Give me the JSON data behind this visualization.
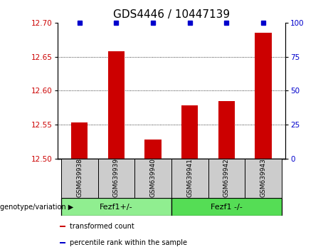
{
  "title": "GDS4446 / 10447139",
  "samples": [
    "GSM639938",
    "GSM639939",
    "GSM639940",
    "GSM639941",
    "GSM639942",
    "GSM639943"
  ],
  "bar_values": [
    12.553,
    12.658,
    12.528,
    12.578,
    12.585,
    12.685
  ],
  "percentile_values": [
    100,
    100,
    100,
    100,
    100,
    100
  ],
  "ylim_left": [
    12.5,
    12.7
  ],
  "ylim_right": [
    0,
    100
  ],
  "yticks_left": [
    12.5,
    12.55,
    12.6,
    12.65,
    12.7
  ],
  "yticks_right": [
    0,
    25,
    50,
    75,
    100
  ],
  "bar_color": "#cc0000",
  "percentile_color": "#0000cc",
  "groups": [
    {
      "label": "Fezf1+/-",
      "sample_indices": [
        0,
        1,
        2
      ],
      "color": "#90ee90"
    },
    {
      "label": "Fezf1 -/-",
      "sample_indices": [
        3,
        4,
        5
      ],
      "color": "#55dd55"
    }
  ],
  "genotype_label": "genotype/variation",
  "legend_items": [
    {
      "label": "transformed count",
      "color": "#cc0000"
    },
    {
      "label": "percentile rank within the sample",
      "color": "#0000cc"
    }
  ],
  "title_fontsize": 11,
  "tick_fontsize": 7.5,
  "bar_width": 0.45,
  "sample_name_fontsize": 6.5,
  "group_label_fontsize": 8,
  "legend_fontsize": 7,
  "genotype_label_fontsize": 7
}
